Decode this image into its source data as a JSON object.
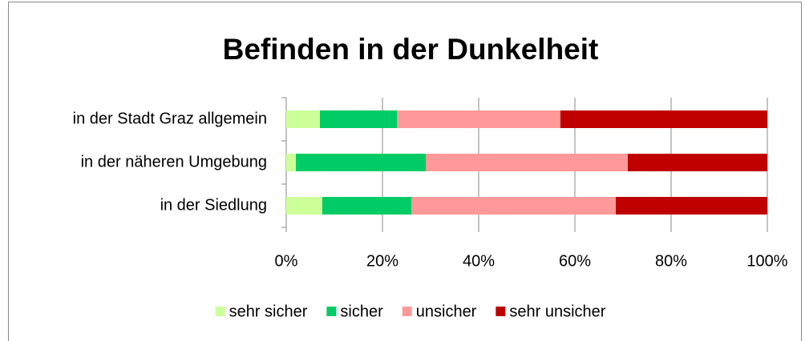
{
  "chart_data": {
    "type": "stacked_barh",
    "title": "Befinden in der Dunkelheit",
    "categories": [
      "in der Stadt Graz allgemein",
      "in der näheren Umgebung",
      "in der Siedlung"
    ],
    "series": [
      {
        "name": "sehr sicher",
        "color": "#ccff99",
        "values": [
          7,
          2,
          7.5
        ]
      },
      {
        "name": "sicher",
        "color": "#00cc66",
        "values": [
          16,
          27,
          18.5
        ]
      },
      {
        "name": "unsicher",
        "color": "#ff9999",
        "values": [
          34,
          42,
          42.5
        ]
      },
      {
        "name": "sehr unsicher",
        "color": "#c00000",
        "values": [
          43,
          29,
          31.5
        ]
      }
    ],
    "xlim": [
      0,
      100
    ],
    "xticks": [
      {
        "value": 0,
        "label": "0%"
      },
      {
        "value": 20,
        "label": "20%"
      },
      {
        "value": 40,
        "label": "40%"
      },
      {
        "value": 60,
        "label": "60%"
      },
      {
        "value": 80,
        "label": "80%"
      },
      {
        "value": 100,
        "label": "100%"
      }
    ],
    "grid": true,
    "legend": "bottom"
  }
}
